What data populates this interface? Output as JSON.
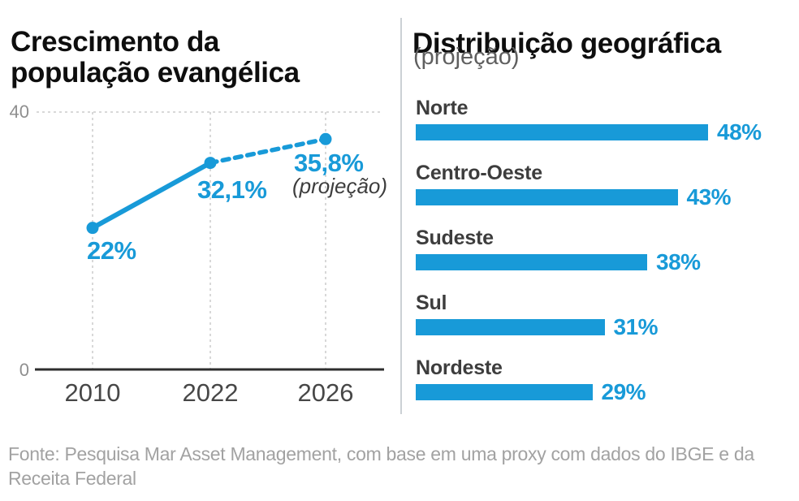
{
  "colors": {
    "accent": "#189ad8",
    "grid": "#cbcbcb",
    "axis": "#2e2e2e"
  },
  "chart_data": [
    {
      "type": "line",
      "title": "Crescimento da população evangélica",
      "x": [
        "2010",
        "2022",
        "2026"
      ],
      "values": [
        22,
        32.1,
        35.8
      ],
      "value_labels": [
        "22%",
        "32,1%",
        "35,8%"
      ],
      "projection_annotation": "(projeção)",
      "projected_from_index": 1,
      "ylim": [
        0,
        40
      ],
      "ytick_labels": [
        "0",
        "40"
      ],
      "xlabel": "",
      "ylabel": "",
      "grid": "dashed-vertical-and-top"
    },
    {
      "type": "bar",
      "orientation": "horizontal",
      "title": "Distribuição geográfica",
      "subtitle": "(projeção)",
      "categories": [
        "Norte",
        "Centro-Oeste",
        "Sudeste",
        "Sul",
        "Nordeste"
      ],
      "values": [
        48,
        43,
        38,
        31,
        29
      ],
      "value_labels": [
        "48%",
        "43%",
        "38%",
        "31%",
        "29%"
      ],
      "xlim": [
        0,
        48
      ]
    }
  ],
  "footer": {
    "source": "Fonte: Pesquisa Mar Asset Management, com base em uma proxy com dados do IBGE e da Receita Federal"
  }
}
